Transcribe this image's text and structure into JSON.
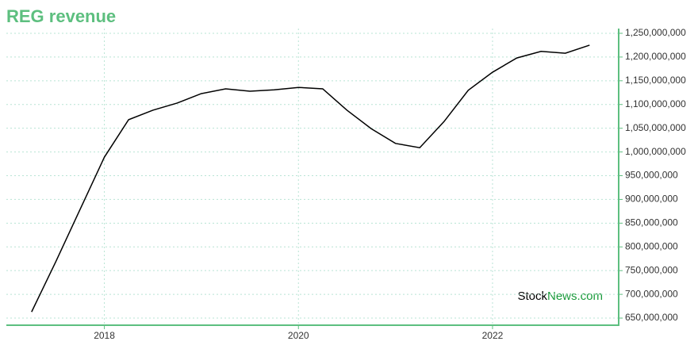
{
  "chart_data": {
    "type": "line",
    "title": "REG revenue",
    "watermark": [
      "Stock",
      "News.com"
    ],
    "x": [
      2017.25,
      2017.5,
      2017.75,
      2018.0,
      2018.25,
      2018.5,
      2018.75,
      2019.0,
      2019.25,
      2019.5,
      2019.75,
      2020.0,
      2020.25,
      2020.5,
      2020.75,
      2021.0,
      2021.25,
      2021.5,
      2021.75,
      2022.0,
      2022.25,
      2022.5,
      2022.75,
      2023.0
    ],
    "series": [
      {
        "color": "#000000",
        "values": [
          663000000,
          769000000,
          879000000,
          989000000,
          1068000000,
          1088000000,
          1103000000,
          1123000000,
          1133000000,
          1128000000,
          1131000000,
          1136000000,
          1133000000,
          1088000000,
          1049000000,
          1018000000,
          1009000000,
          1064000000,
          1130000000,
          1168000000,
          1198000000,
          1212000000,
          1208000000,
          1225000000
        ]
      }
    ],
    "xlim": [
      2016.99,
      2023.3
    ],
    "xticks": [
      2018,
      2020,
      2022
    ],
    "ylim": [
      635000000,
      1260000000
    ],
    "yticks": [
      {
        "value": 650000000,
        "label": "650,000,000"
      },
      {
        "value": 700000000,
        "label": "700,000,000"
      },
      {
        "value": 750000000,
        "label": "750,000,000"
      },
      {
        "value": 800000000,
        "label": "800,000,000"
      },
      {
        "value": 850000000,
        "label": "850,000,000"
      },
      {
        "value": 900000000,
        "label": "900,000,000"
      },
      {
        "value": 950000000,
        "label": "950,000,000"
      },
      {
        "value": 1000000000,
        "label": "1,000,000,000"
      },
      {
        "value": 1050000000,
        "label": "1,050,000,000"
      },
      {
        "value": 1100000000,
        "label": "1,100,000,000"
      },
      {
        "value": 1150000000,
        "label": "1,150,000,000"
      },
      {
        "value": 1200000000,
        "label": "1,200,000,000"
      },
      {
        "value": 1250000000,
        "label": "1,250,000,000"
      }
    ],
    "grid": true,
    "axis_color": "#5dbf7f"
  }
}
